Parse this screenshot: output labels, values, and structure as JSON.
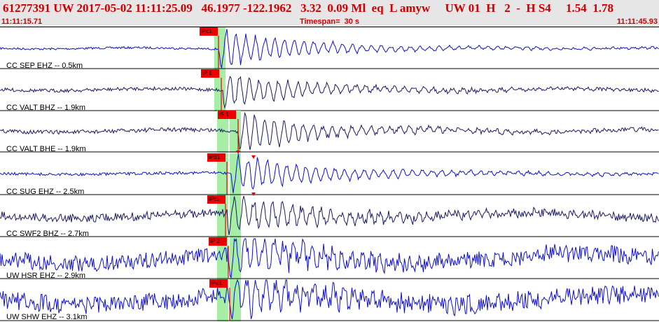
{
  "header": {
    "line": "61277391 UW 2017-05-02 11:11:25.09   46.1977 -122.1962   3.32  0.09 Ml  eq  L amyw     UW 01  H   2  -  H S4     1.54  1.78",
    "start_time": "11:11:15.71",
    "timespan": "Timespan=  30 s",
    "end_time": "11:11:45.93"
  },
  "colors": {
    "header_bg": "#e6e6e6",
    "header_text": "#cc0000",
    "trace_blue": "#1010c8",
    "trace_dark": "#1a1a60",
    "pick_red": "#ee0000",
    "highlight_green": "#a6eea6"
  },
  "traces": [
    {
      "label": "CC SEP EHZ -- 0.5km",
      "pick": "iPc1"
    },
    {
      "label": "CC VALT BHZ -- 1.9km",
      "pick": "iP 1"
    },
    {
      "label": "CC VALT BHE -- 1.9km",
      "pick": "iS 1"
    },
    {
      "label": "CC SUG EHZ -- 2.5km",
      "pick": "iPd1"
    },
    {
      "label": "CC SWF2 BHZ -- 2.7km",
      "pick": "iPc1"
    },
    {
      "label": "UW HSR EHZ -- 2.9km",
      "pick": "iP 2"
    },
    {
      "label": "UW SHW EHZ -- 3.1km",
      "pick": "iPd1"
    }
  ]
}
